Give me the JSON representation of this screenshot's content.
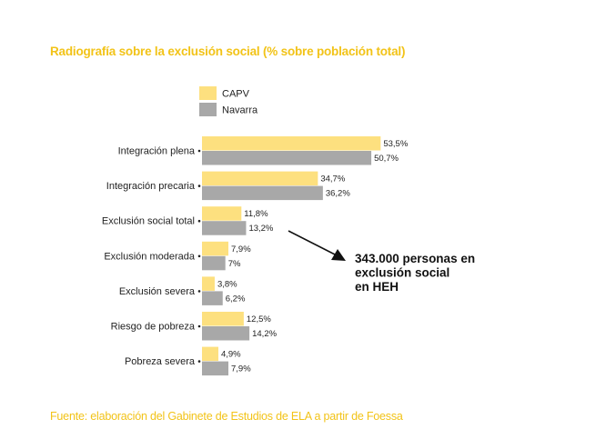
{
  "chart_data": {
    "type": "bar",
    "orientation": "horizontal",
    "title": "Radiografía sobre la exclusión social (% sobre población total)",
    "source": "Fuente: elaboración del Gabinete de Estudios de ELA a partir de Foessa",
    "categories": [
      "Integración plena",
      "Integración precaria",
      "Exclusión social total",
      "Exclusión moderada",
      "Exclusión severa",
      "Riesgo de pobreza",
      "Pobreza severa"
    ],
    "series": [
      {
        "name": "CAPV",
        "color": "#fde07f",
        "values": [
          53.5,
          34.7,
          11.8,
          7.9,
          3.8,
          12.5,
          4.9
        ],
        "labels": [
          "53,5%",
          "34,7%",
          "11,8%",
          "7,9%",
          "3,8%",
          "12,5%",
          "4,9%"
        ]
      },
      {
        "name": "Navarra",
        "color": "#a8a8a8",
        "values": [
          50.7,
          36.2,
          13.2,
          7,
          6.2,
          14.2,
          7.9
        ],
        "labels": [
          "50,7%",
          "36,2%",
          "13,2%",
          "7%",
          "6,2%",
          "14,2%",
          "7,9%"
        ]
      }
    ],
    "legend_position": "top-left",
    "annotation": {
      "lines": [
        "343.000 personas en",
        "exclusión social",
        "en HEH"
      ],
      "points_to": "Exclusión social total"
    },
    "grid": false
  }
}
